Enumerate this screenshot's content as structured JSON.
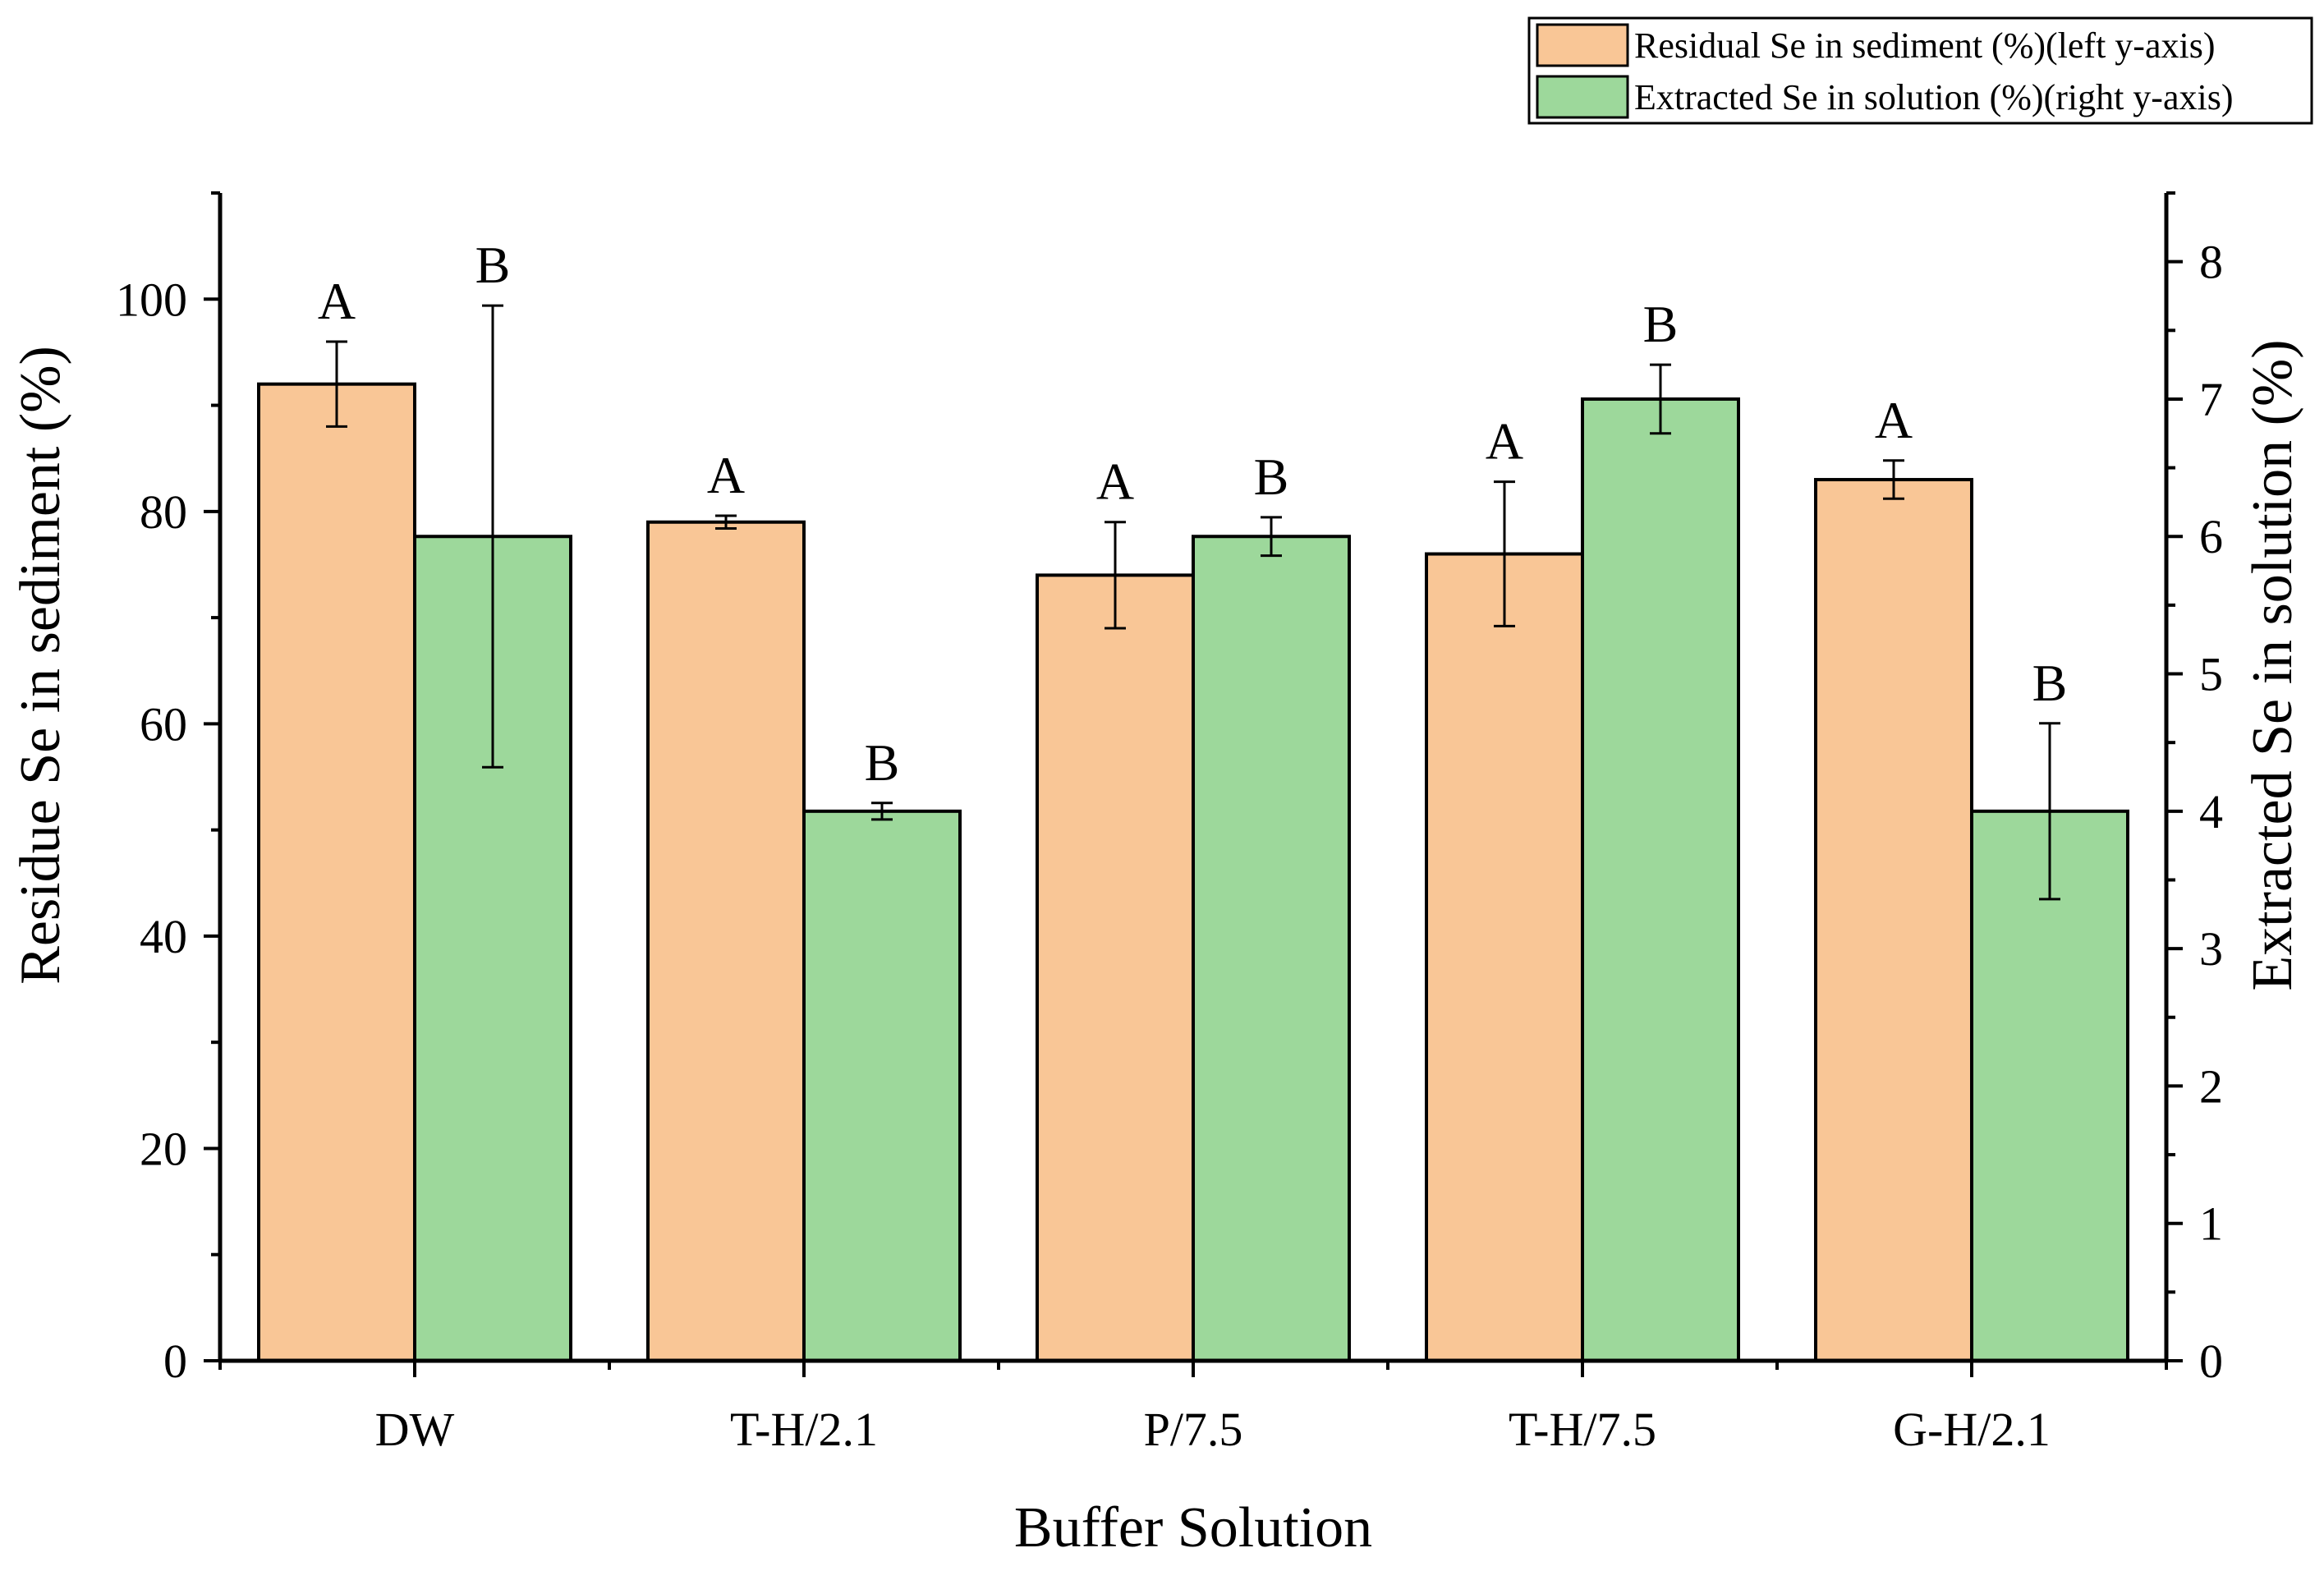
{
  "chart_data": {
    "type": "bar",
    "xlabel": "Buffer Solution",
    "ylabel_left": "Residue Se in sediment (%)",
    "ylabel_right": "Extracted Se in solution (%)",
    "categories": [
      "DW",
      "T-H/2.1",
      "P/7.5",
      "T-H/7.5",
      "G-H/2.1"
    ],
    "ylim_left": [
      0,
      110
    ],
    "ylim_right": [
      0,
      8.5
    ],
    "yticks_left": [
      0,
      20,
      40,
      60,
      80,
      100
    ],
    "yticks_right": [
      0,
      1,
      2,
      3,
      4,
      5,
      6,
      7,
      8
    ],
    "legend_position": "top-right",
    "series": [
      {
        "name": "Residual Se  in sediment (%)(left y-axis)",
        "axis": "left",
        "color": "#F9C696",
        "values": [
          92,
          79,
          74,
          76,
          83
        ],
        "errors": [
          4,
          0.6,
          5,
          6.8,
          1.8
        ],
        "significance": [
          "A",
          "A",
          "A",
          "A",
          "A"
        ]
      },
      {
        "name": "Extracted Se in solution (%)(right y-axis)",
        "axis": "right",
        "color": "#9DD89B",
        "values": [
          6.0,
          4.0,
          6.0,
          7.0,
          4.0
        ],
        "errors": [
          1.68,
          0.06,
          0.14,
          0.25,
          0.64
        ],
        "significance": [
          "B",
          "B",
          "B",
          "B",
          "B"
        ]
      }
    ]
  }
}
